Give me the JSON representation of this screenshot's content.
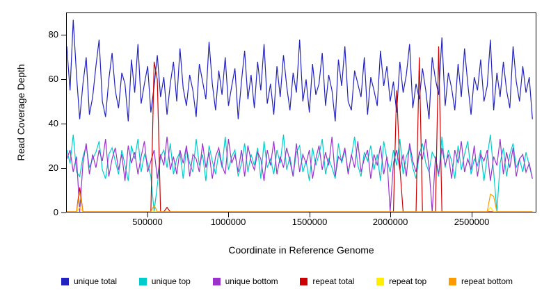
{
  "chart_data": {
    "type": "line",
    "title": "",
    "xlabel": "Coordinate in Reference Genome",
    "ylabel": "Read Coverage Depth",
    "xlim": [
      0,
      2900000
    ],
    "ylim": [
      0,
      90
    ],
    "grid": false,
    "legend_position": "bottom",
    "x_ticks": [
      "500000",
      "1000000",
      "1500000",
      "2000000",
      "2500000"
    ],
    "y_ticks": [
      "0",
      "20",
      "40",
      "60",
      "80"
    ],
    "x_start": 0,
    "x_step": 20000,
    "draw_order": [
      0,
      1,
      2,
      3,
      4,
      5
    ],
    "series": [
      {
        "name": "unique total",
        "color": "#2222BE",
        "values": [
          75,
          55,
          87,
          62,
          42,
          58,
          70,
          44,
          52,
          66,
          78,
          50,
          43,
          60,
          72,
          55,
          47,
          63,
          58,
          41,
          69,
          54,
          76,
          49,
          58,
          66,
          45,
          57,
          71,
          52,
          61,
          44,
          58,
          68,
          50,
          74,
          56,
          48,
          62,
          55,
          43,
          67,
          59,
          51,
          77,
          58,
          46,
          64,
          53,
          70,
          48,
          57,
          65,
          42,
          59,
          73,
          51,
          62,
          47,
          68,
          55,
          76,
          49,
          58,
          44,
          66,
          52,
          71,
          57,
          46,
          63,
          54,
          78,
          50,
          60,
          45,
          67,
          53,
          58,
          72,
          48,
          62,
          55,
          41,
          69,
          57,
          75,
          50,
          46,
          64,
          58,
          52,
          70,
          44,
          61,
          55,
          48,
          73,
          57,
          66,
          50,
          59,
          45,
          68,
          54,
          62,
          76,
          47,
          58,
          51,
          65,
          55,
          42,
          70,
          60,
          53,
          79,
          48,
          63,
          56,
          46,
          67,
          52,
          74,
          58,
          44,
          61,
          55,
          69,
          50,
          57,
          78,
          46,
          63,
          52,
          68,
          55,
          47,
          75,
          59,
          50,
          66,
          54,
          61,
          42
        ]
      },
      {
        "name": "unique top",
        "color": "#00CCCC",
        "values": [
          28,
          22,
          35,
          18,
          16,
          25,
          30,
          20,
          24,
          27,
          32,
          19,
          15,
          26,
          29,
          23,
          17,
          28,
          21,
          14,
          30,
          24,
          33,
          18,
          26,
          22,
          16,
          0,
          12,
          25,
          28,
          20,
          31,
          17,
          24,
          27,
          15,
          29,
          22,
          18,
          33,
          21,
          26,
          14,
          30,
          23,
          17,
          27,
          20,
          34,
          19,
          25,
          28,
          16,
          22,
          31,
          18,
          26,
          21,
          29,
          15,
          32,
          20,
          24,
          17,
          28,
          22,
          35,
          19,
          25,
          16,
          27,
          30,
          18,
          23,
          14,
          29,
          21,
          26,
          33,
          17,
          24,
          20,
          15,
          31,
          22,
          28,
          18,
          25,
          34,
          21,
          16,
          27,
          23,
          30,
          19,
          26,
          14,
          32,
          24,
          18,
          28,
          21,
          33,
          17,
          25,
          29,
          20,
          15,
          26,
          31,
          22,
          18,
          27,
          24,
          16,
          34,
          20,
          28,
          23,
          15,
          30,
          19,
          26,
          32,
          17,
          24,
          21,
          28,
          14,
          25,
          35,
          18,
          0,
          22,
          29,
          16,
          26,
          31,
          20,
          24,
          18,
          27,
          21,
          15
        ]
      },
      {
        "name": "unique bottom",
        "color": "#9933CC",
        "values": [
          24,
          28,
          18,
          25,
          0,
          22,
          31,
          17,
          26,
          20,
          28,
          23,
          33,
          16,
          24,
          29,
          19,
          26,
          14,
          30,
          22,
          27,
          17,
          25,
          32,
          18,
          23,
          28,
          15,
          26,
          21,
          34,
          19,
          25,
          17,
          28,
          22,
          30,
          16,
          26,
          24,
          18,
          31,
          20,
          27,
          15,
          25,
          29,
          21,
          17,
          33,
          22,
          26,
          18,
          28,
          16,
          30,
          23,
          19,
          27,
          24,
          14,
          28,
          21,
          32,
          17,
          25,
          20,
          29,
          23,
          16,
          31,
          18,
          26,
          22,
          28,
          15,
          24,
          30,
          19,
          27,
          21,
          34,
          16,
          25,
          23,
          29,
          17,
          26,
          20,
          32,
          18,
          24,
          28,
          15,
          26,
          21,
          30,
          17,
          25,
          0,
          22,
          28,
          19,
          26,
          16,
          31,
          23,
          18,
          27,
          24,
          33,
          20,
          0,
          25,
          17,
          29,
          21,
          26,
          15,
          28,
          22,
          32,
          18,
          24,
          19,
          30,
          16,
          26,
          23,
          28,
          14,
          25,
          21,
          33,
          17,
          27,
          20,
          29,
          16,
          24,
          26,
          18,
          22,
          15
        ]
      },
      {
        "name": "repeat total",
        "color": "#CC0000",
        "values_sparse": {
          "length": 145,
          "default": 0,
          "points": {
            "4": 11,
            "27": 68,
            "28": 60,
            "31": 2,
            "102": 55,
            "103": 20,
            "109": 70,
            "115": 75
          }
        }
      },
      {
        "name": "repeat top",
        "color": "#FFEE00",
        "values_sparse": {
          "length": 145,
          "default": 0,
          "points": {
            "4": 2,
            "131": 2
          }
        }
      },
      {
        "name": "repeat bottom",
        "color": "#FF9900",
        "values_sparse": {
          "length": 145,
          "default": 0,
          "points": {
            "4": 9,
            "27": 3,
            "131": 8,
            "132": 7
          }
        }
      }
    ]
  }
}
